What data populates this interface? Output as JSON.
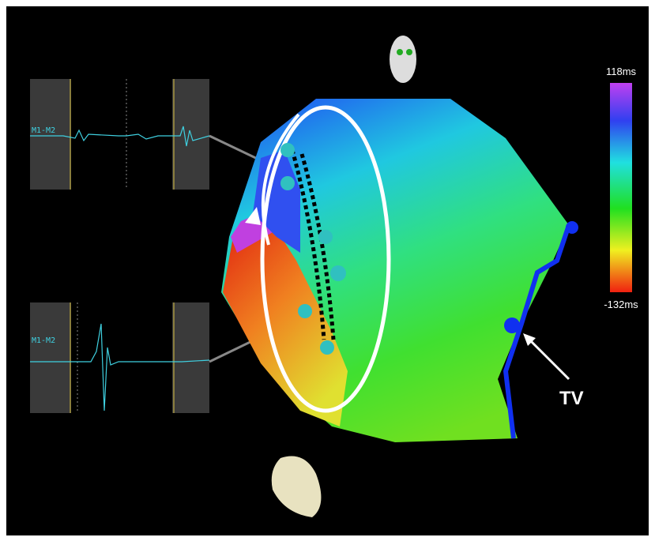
{
  "colorbar": {
    "max_label": "118ms",
    "min_label": "-132ms"
  },
  "egm_panels": [
    {
      "label": "M1-M2"
    },
    {
      "label": "M1-M2"
    }
  ],
  "annotation": "TV"
}
